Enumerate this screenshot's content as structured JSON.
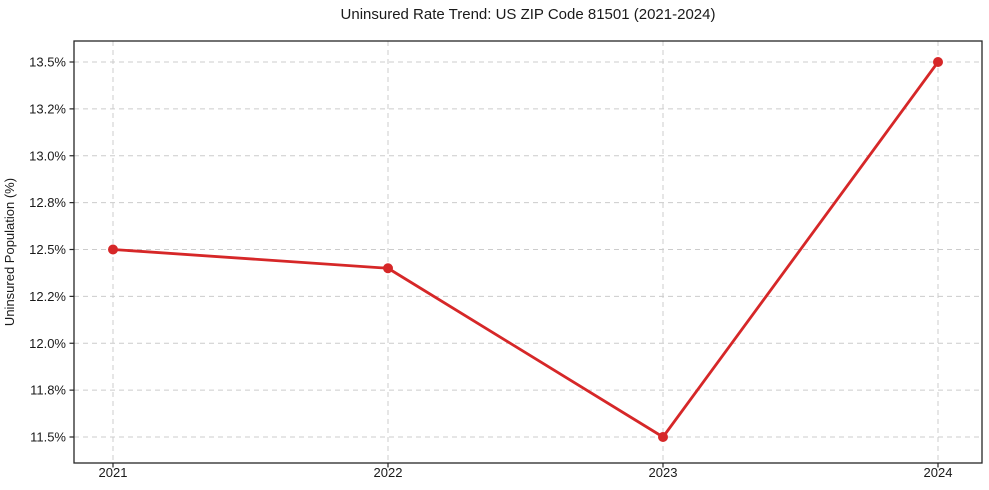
{
  "chart_data": {
    "type": "line",
    "title": "Uninsured Rate Trend: US ZIP Code 81501 (2021-2024)",
    "xlabel": "",
    "ylabel": "Uninsured Population (%)",
    "categories": [
      "2021",
      "2022",
      "2023",
      "2024"
    ],
    "series": [
      {
        "name": "Uninsured Rate",
        "values": [
          12.5,
          12.4,
          11.5,
          13.5
        ]
      }
    ],
    "yticks": [
      {
        "value": 13.5,
        "label": "13.5%"
      },
      {
        "value": 13.25,
        "label": "13.2%"
      },
      {
        "value": 13.0,
        "label": "13.0%"
      },
      {
        "value": 12.75,
        "label": "12.8%"
      },
      {
        "value": 12.5,
        "label": "12.5%"
      },
      {
        "value": 12.25,
        "label": "12.2%"
      },
      {
        "value": 12.0,
        "label": "12.0%"
      },
      {
        "value": 11.75,
        "label": "11.8%"
      },
      {
        "value": 11.5,
        "label": "11.5%"
      }
    ],
    "ylim": [
      11.36,
      13.61
    ],
    "grid": true,
    "grid_style": "dashed",
    "legend": false,
    "colors": {
      "line": "#d62728",
      "marker": "#d62728",
      "grid": "#cccccc",
      "spine": "#262626",
      "text": "#1a1a1a"
    }
  }
}
